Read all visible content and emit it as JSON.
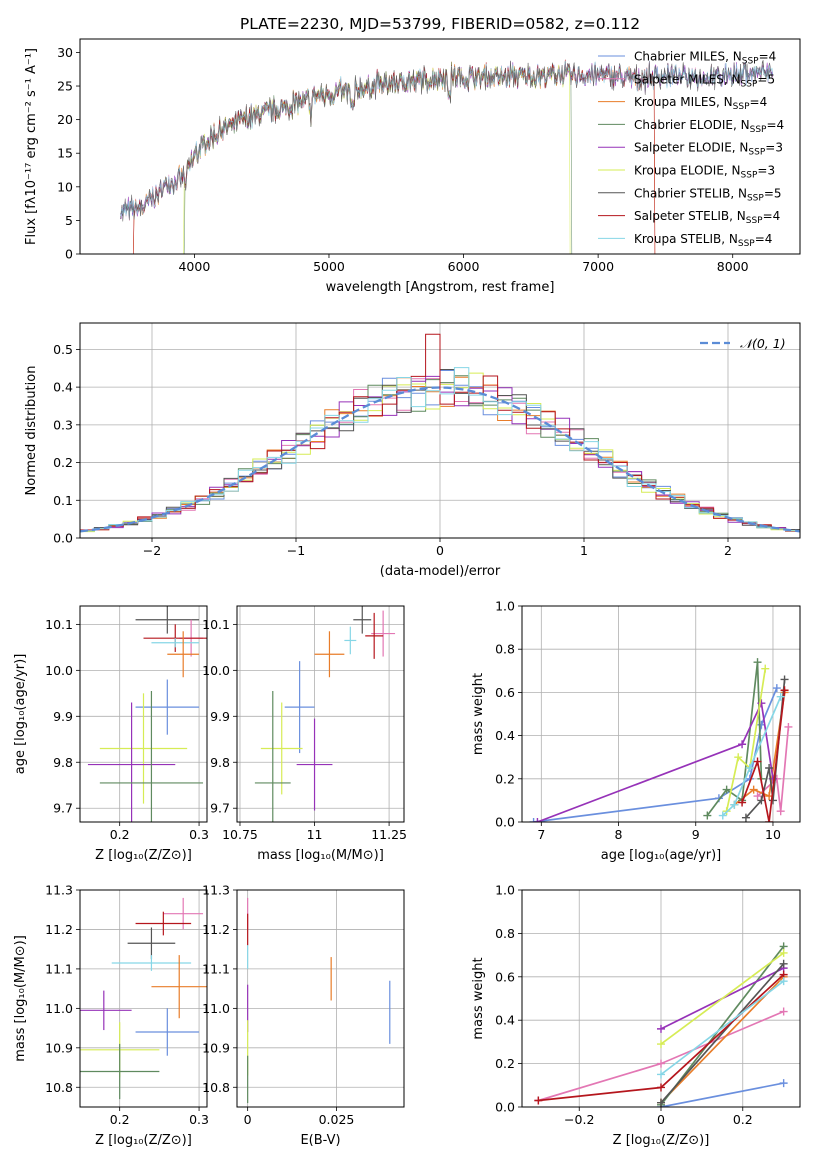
{
  "title": "PLATE=2230, MJD=53799, FIBERID=0582, z=0.112",
  "colors": {
    "Chabrier MILES": "#6a8fde",
    "Salpeter MILES": "#e377b4",
    "Kroupa MILES": "#e87d2a",
    "Chabrier ELODIE": "#5f8a5f",
    "Salpeter ELODIE": "#9632b8",
    "Kroupa ELODIE": "#d6ec55",
    "Chabrier STELIB": "#555555",
    "Salpeter STELIB": "#b5161d",
    "Kroupa STELIB": "#86d6e6"
  },
  "chart_data": [
    {
      "type": "line",
      "id": "spectrum",
      "xlabel": "wavelength [Angstrom, rest frame]",
      "ylabel": "Flux [fλ10⁻¹⁷ erg cm⁻² s⁻¹ A⁻¹]",
      "xlim": [
        3150,
        8500
      ],
      "ylim": [
        0,
        32
      ],
      "xticks": [
        4000,
        5000,
        6000,
        7000,
        8000
      ],
      "yticks": [
        0,
        5,
        10,
        15,
        20,
        25,
        30
      ],
      "grid": false,
      "legend_position": "right",
      "legend": [
        {
          "name": "Chabrier MILES",
          "base": "Chabrier MILES, N",
          "sub": "SSP",
          "tail": "=4"
        },
        {
          "name": "Salpeter MILES",
          "base": "Salpeter MILES, N",
          "sub": "SSP",
          "tail": "=5"
        },
        {
          "name": "Kroupa MILES",
          "base": "Kroupa MILES, N",
          "sub": "SSP",
          "tail": "=4"
        },
        {
          "name": "Chabrier ELODIE",
          "base": "Chabrier ELODIE, N",
          "sub": "SSP",
          "tail": "=4"
        },
        {
          "name": "Salpeter ELODIE",
          "base": "Salpeter ELODIE, N",
          "sub": "SSP",
          "tail": "=3"
        },
        {
          "name": "Kroupa ELODIE",
          "base": "Kroupa ELODIE, N",
          "sub": "SSP",
          "tail": "=3"
        },
        {
          "name": "Chabrier STELIB",
          "base": "Chabrier STELIB, N",
          "sub": "SSP",
          "tail": "=5"
        },
        {
          "name": "Salpeter STELIB",
          "base": "Salpeter STELIB, N",
          "sub": "SSP",
          "tail": "=4"
        },
        {
          "name": "Kroupa STELIB",
          "base": "Kroupa STELIB, N",
          "sub": "SSP",
          "tail": "=4"
        }
      ],
      "continuum_x": [
        3450,
        3600,
        3700,
        3800,
        3900,
        3950,
        4000,
        4100,
        4300,
        4500,
        4700,
        4900,
        5100,
        5300,
        5500,
        5700,
        5900,
        6100,
        6300,
        6500,
        6700,
        6900,
        7100,
        7300,
        7500,
        7700,
        7900,
        8100,
        8300
      ],
      "continuum_y": [
        6.3,
        6.8,
        8.5,
        10.5,
        11.0,
        12.5,
        14.5,
        17.0,
        19.5,
        21.0,
        22.0,
        23.5,
        24.0,
        25.0,
        25.5,
        26.0,
        26.5,
        26.2,
        26.5,
        26.5,
        26.5,
        26.7,
        26.5,
        26.0,
        26.5,
        26.5,
        26.5,
        27.0,
        27.0
      ],
      "dropouts": [
        {
          "series": "Salpeter STELIB",
          "x": [
            3550,
            7420
          ]
        },
        {
          "series": "Kroupa MILES",
          "x": [
            3550,
            7420
          ]
        },
        {
          "series": "Kroupa ELODIE",
          "x": [
            3920,
            6790
          ]
        },
        {
          "series": "Chabrier ELODIE",
          "x": [
            3930,
            6800
          ]
        }
      ]
    },
    {
      "type": "line",
      "id": "residual-histogram",
      "xlabel": "(data-model)/error",
      "ylabel": "Normed distribution",
      "xlim": [
        -2.5,
        2.5
      ],
      "ylim": [
        0,
        0.57
      ],
      "xticks": [
        -2,
        -1,
        0,
        1,
        2
      ],
      "yticks": [
        0.0,
        0.1,
        0.2,
        0.3,
        0.4,
        0.5
      ],
      "grid": true,
      "legend_position": "top-right",
      "legend_label": "𝒩(0, 1)",
      "bin_width": 0.1
    },
    {
      "type": "scatter",
      "id": "age-vs-Z",
      "xlabel": "Z [log₁₀(Z/Z⊙)]",
      "ylabel": "age  [log₁₀(age/yr)]",
      "xlim": [
        0.15,
        0.31
      ],
      "ylim": [
        9.67,
        10.14
      ],
      "xticks": [
        0.2,
        0.3
      ],
      "yticks": [
        9.7,
        9.8,
        9.9,
        10.0,
        10.1
      ],
      "grid": true,
      "points": [
        {
          "series": "Chabrier STELIB",
          "x": 0.26,
          "y": 10.11,
          "xerr": 0.04,
          "yerr": 0.03
        },
        {
          "series": "Salpeter MILES",
          "x": 0.29,
          "y": 10.07,
          "xerr": 0.015,
          "yerr": 0.04
        },
        {
          "series": "Salpeter STELIB",
          "x": 0.27,
          "y": 10.07,
          "xerr": 0.04,
          "yerr": 0.03
        },
        {
          "series": "Kroupa STELIB",
          "x": 0.27,
          "y": 10.06,
          "xerr": 0.03,
          "yerr": 0.01
        },
        {
          "series": "Kroupa MILES",
          "x": 0.28,
          "y": 10.035,
          "xerr": 0.02,
          "yerr": 0.05
        },
        {
          "series": "Chabrier MILES",
          "x": 0.26,
          "y": 9.92,
          "xerr": 0.04,
          "yerr": 0.06
        },
        {
          "series": "Kroupa ELODIE",
          "x": 0.23,
          "y": 9.83,
          "xerr": 0.055,
          "yerr": 0.12
        },
        {
          "series": "Salpeter ELODIE",
          "x": 0.215,
          "y": 9.795,
          "xerr": 0.055,
          "yerr": 0.135
        },
        {
          "series": "Chabrier ELODIE",
          "x": 0.24,
          "y": 9.755,
          "xerr": 0.065,
          "yerr": 0.2
        }
      ]
    },
    {
      "type": "scatter",
      "id": "age-vs-mass",
      "xlabel": "mass [log₁₀(M/M⊙)]",
      "ylabel": "",
      "xlim": [
        10.74,
        11.3
      ],
      "ylim": [
        9.67,
        10.14
      ],
      "xticks": [
        10.75,
        11.0,
        11.25
      ],
      "yticks": [
        9.7,
        9.8,
        9.9,
        10.0,
        10.1
      ],
      "grid": true,
      "points": [
        {
          "series": "Chabrier STELIB",
          "x": 11.16,
          "y": 10.11,
          "xerr": 0.03,
          "yerr": 0.03
        },
        {
          "series": "Salpeter MILES",
          "x": 11.23,
          "y": 10.08,
          "xerr": 0.04,
          "yerr": 0.05
        },
        {
          "series": "Salpeter STELIB",
          "x": 11.2,
          "y": 10.075,
          "xerr": 0.03,
          "yerr": 0.05
        },
        {
          "series": "Kroupa STELIB",
          "x": 11.12,
          "y": 10.065,
          "xerr": 0.02,
          "yerr": 0.03
        },
        {
          "series": "Kroupa MILES",
          "x": 11.05,
          "y": 10.035,
          "xerr": 0.05,
          "yerr": 0.05
        },
        {
          "series": "Chabrier MILES",
          "x": 10.95,
          "y": 9.92,
          "xerr": 0.05,
          "yerr": 0.1
        },
        {
          "series": "Kroupa ELODIE",
          "x": 10.89,
          "y": 9.83,
          "xerr": 0.07,
          "yerr": 0.1
        },
        {
          "series": "Salpeter ELODIE",
          "x": 11.0,
          "y": 9.795,
          "xerr": 0.06,
          "yerr": 0.1
        },
        {
          "series": "Chabrier ELODIE",
          "x": 10.86,
          "y": 9.755,
          "xerr": 0.06,
          "yerr": 0.2
        }
      ]
    },
    {
      "type": "line",
      "id": "weight-vs-age",
      "xlabel": "age  [log₁₀(age/yr)]",
      "ylabel": "mass weight",
      "xlim": [
        6.75,
        10.35
      ],
      "ylim": [
        0,
        1.0
      ],
      "xticks": [
        7,
        8,
        9,
        10
      ],
      "yticks": [
        0.0,
        0.2,
        0.4,
        0.6,
        0.8,
        1.0
      ],
      "grid": true,
      "series": [
        {
          "name": "Chabrier MILES",
          "x": [
            6.9,
            9.3,
            9.7,
            9.85,
            10.05
          ],
          "y": [
            0.0,
            0.11,
            0.2,
            0.45,
            0.62
          ]
        },
        {
          "name": "Salpeter MILES",
          "x": [
            9.8,
            10.05,
            10.1,
            10.2
          ],
          "y": [
            0.12,
            0.2,
            0.05,
            0.44
          ]
        },
        {
          "name": "Kroupa MILES",
          "x": [
            9.5,
            9.75,
            9.95,
            10.15
          ],
          "y": [
            0.08,
            0.15,
            0.12,
            0.6
          ]
        },
        {
          "name": "Chabrier ELODIE",
          "x": [
            9.15,
            9.4,
            9.6,
            9.8,
            9.85
          ],
          "y": [
            0.03,
            0.15,
            0.1,
            0.74,
            0.2
          ]
        },
        {
          "name": "Salpeter ELODIE",
          "x": [
            6.95,
            9.6,
            9.85,
            10.0
          ],
          "y": [
            0.0,
            0.36,
            0.55,
            0.2
          ]
        },
        {
          "name": "Kroupa ELODIE",
          "x": [
            9.4,
            9.55,
            9.7,
            9.9
          ],
          "y": [
            0.05,
            0.3,
            0.25,
            0.71
          ]
        },
        {
          "name": "Chabrier STELIB",
          "x": [
            9.65,
            9.85,
            9.95,
            10.0,
            10.15
          ],
          "y": [
            0.02,
            0.1,
            0.25,
            0.1,
            0.66
          ]
        },
        {
          "name": "Salpeter STELIB",
          "x": [
            9.6,
            9.8,
            9.95,
            10.15
          ],
          "y": [
            0.09,
            0.28,
            0.0,
            0.61
          ]
        },
        {
          "name": "Kroupa STELIB",
          "x": [
            9.35,
            9.5,
            9.7,
            10.1
          ],
          "y": [
            0.03,
            0.08,
            0.25,
            0.58
          ]
        }
      ]
    },
    {
      "type": "scatter",
      "id": "mass-vs-Z",
      "xlabel": "Z [log₁₀(Z/Z⊙)]",
      "ylabel": "mass [log₁₀(M/M⊙)]",
      "xlim": [
        0.15,
        0.31
      ],
      "ylim": [
        10.75,
        11.3
      ],
      "xticks": [
        0.2,
        0.3
      ],
      "yticks": [
        10.8,
        10.9,
        11.0,
        11.1,
        11.2,
        11.3
      ],
      "grid": true,
      "points": [
        {
          "series": "Salpeter MILES",
          "x": 0.28,
          "y": 11.24,
          "xerr": 0.025,
          "yerr": 0.04
        },
        {
          "series": "Salpeter STELIB",
          "x": 0.255,
          "y": 11.215,
          "xerr": 0.035,
          "yerr": 0.03
        },
        {
          "series": "Chabrier STELIB",
          "x": 0.24,
          "y": 11.165,
          "xerr": 0.03,
          "yerr": 0.04
        },
        {
          "series": "Kroupa STELIB",
          "x": 0.24,
          "y": 11.115,
          "xerr": 0.05,
          "yerr": 0.02
        },
        {
          "series": "Kroupa MILES",
          "x": 0.275,
          "y": 11.055,
          "xerr": 0.035,
          "yerr": 0.08
        },
        {
          "series": "Salpeter ELODIE",
          "x": 0.18,
          "y": 10.995,
          "xerr": 0.035,
          "yerr": 0.05
        },
        {
          "series": "Chabrier MILES",
          "x": 0.26,
          "y": 10.94,
          "xerr": 0.04,
          "yerr": 0.06
        },
        {
          "series": "Kroupa ELODIE",
          "x": 0.2,
          "y": 10.895,
          "xerr": 0.05,
          "yerr": 0.07
        },
        {
          "series": "Chabrier ELODIE",
          "x": 0.2,
          "y": 10.84,
          "xerr": 0.05,
          "yerr": 0.07
        }
      ]
    },
    {
      "type": "scatter",
      "id": "mass-vs-ebv",
      "xlabel": "E(B-V)",
      "ylabel": "",
      "xlim": [
        -0.003,
        0.044
      ],
      "ylim": [
        10.75,
        11.3
      ],
      "xticks": [
        0.0,
        0.025
      ],
      "yticks": [
        10.8,
        10.9,
        11.0,
        11.1,
        11.2,
        11.3
      ],
      "grid": true,
      "points": [
        {
          "series": "Salpeter MILES",
          "x": 0.0,
          "y": 11.24,
          "xerr": 0,
          "yerr": 0.04
        },
        {
          "series": "Salpeter STELIB",
          "x": 0.0,
          "y": 11.2,
          "xerr": 0,
          "yerr": 0.04
        },
        {
          "series": "Kroupa STELIB",
          "x": 0.0,
          "y": 11.13,
          "xerr": 0,
          "yerr": 0.03
        },
        {
          "series": "Kroupa MILES",
          "x": 0.0235,
          "y": 11.075,
          "xerr": 0,
          "yerr": 0.055
        },
        {
          "series": "Salpeter ELODIE",
          "x": 0.0,
          "y": 11.0,
          "xerr": 0,
          "yerr": 0.06
        },
        {
          "series": "Chabrier MILES",
          "x": 0.04,
          "y": 10.99,
          "xerr": 0,
          "yerr": 0.08
        },
        {
          "series": "Kroupa ELODIE",
          "x": 0.0,
          "y": 10.9,
          "xerr": 0,
          "yerr": 0.07
        },
        {
          "series": "Chabrier ELODIE",
          "x": 0.0,
          "y": 10.82,
          "xerr": 0,
          "yerr": 0.06
        }
      ]
    },
    {
      "type": "line",
      "id": "weight-vs-Z",
      "xlabel": "Z [log₁₀(Z/Z⊙)]",
      "ylabel": "mass weight",
      "xlim": [
        -0.34,
        0.34
      ],
      "ylim": [
        0,
        1.0
      ],
      "xticks": [
        -0.2,
        0.0,
        0.2
      ],
      "yticks": [
        0.0,
        0.2,
        0.4,
        0.6,
        0.8,
        1.0
      ],
      "grid": true,
      "series": [
        {
          "name": "Chabrier MILES",
          "x": [
            0.0,
            0.3
          ],
          "y": [
            0.0,
            0.11
          ]
        },
        {
          "name": "Salpeter MILES",
          "x": [
            -0.3,
            0.0,
            0.3
          ],
          "y": [
            0.03,
            0.2,
            0.44
          ]
        },
        {
          "name": "Kroupa MILES",
          "x": [
            0.0,
            0.3
          ],
          "y": [
            0.02,
            0.6
          ]
        },
        {
          "name": "Chabrier ELODIE",
          "x": [
            0.0,
            0.3
          ],
          "y": [
            0.01,
            0.74
          ]
        },
        {
          "name": "Salpeter ELODIE",
          "x": [
            0.0,
            0.3
          ],
          "y": [
            0.36,
            0.64
          ]
        },
        {
          "name": "Kroupa ELODIE",
          "x": [
            0.0,
            0.3
          ],
          "y": [
            0.29,
            0.71
          ]
        },
        {
          "name": "Chabrier STELIB",
          "x": [
            0.0,
            0.3
          ],
          "y": [
            0.02,
            0.66
          ]
        },
        {
          "name": "Salpeter STELIB",
          "x": [
            -0.3,
            0.0,
            0.3
          ],
          "y": [
            0.03,
            0.09,
            0.61
          ]
        },
        {
          "name": "Kroupa STELIB",
          "x": [
            0.0,
            0.3
          ],
          "y": [
            0.15,
            0.58
          ]
        }
      ]
    }
  ]
}
